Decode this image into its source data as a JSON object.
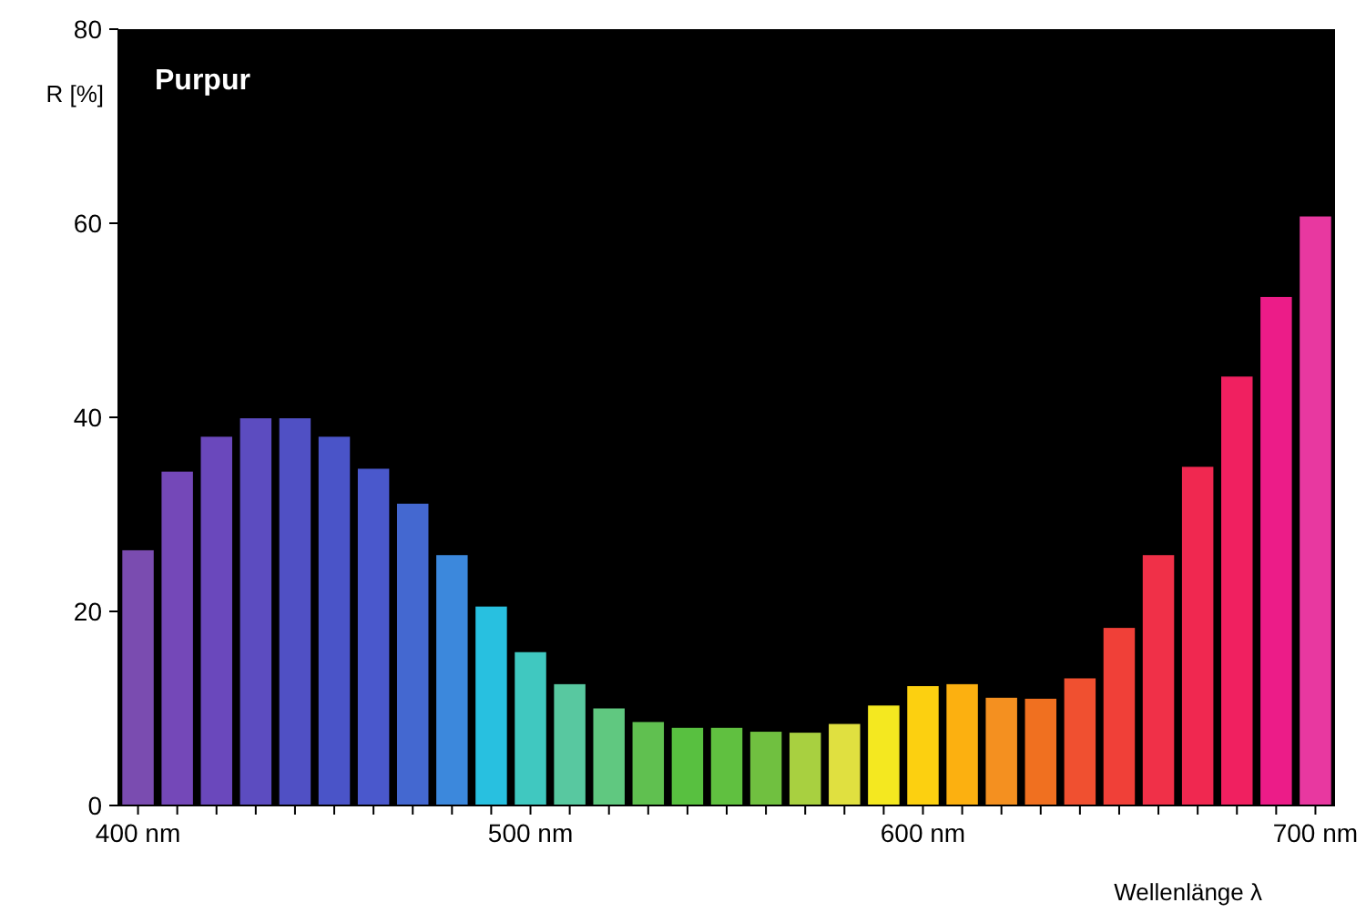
{
  "chart_data": {
    "type": "bar",
    "title": "Purpur",
    "ylabel": "R [%]",
    "xlabel": "Wellenlänge λ",
    "categories": [
      "400 nm",
      null,
      null,
      null,
      null,
      null,
      null,
      null,
      null,
      null,
      "500 nm",
      null,
      null,
      null,
      null,
      null,
      null,
      null,
      null,
      null,
      "600 nm",
      null,
      null,
      null,
      null,
      null,
      null,
      null,
      null,
      null,
      "700 nm"
    ],
    "values": [
      26.3,
      34.4,
      38.0,
      39.9,
      39.9,
      38.0,
      34.7,
      31.1,
      25.8,
      20.5,
      15.8,
      12.5,
      10.0,
      8.6,
      8.0,
      8.0,
      7.6,
      7.5,
      8.4,
      10.3,
      12.3,
      12.5,
      11.1,
      11.0,
      13.1,
      18.3,
      25.8,
      34.9,
      44.2,
      52.4,
      60.7
    ],
    "colors": [
      "#7a4cb0",
      "#7448b8",
      "#6a48bc",
      "#5c4cc0",
      "#5050c4",
      "#4a54c8",
      "#4a58cc",
      "#4468d0",
      "#3c88dc",
      "#28c0e0",
      "#40c8c0",
      "#58c8a0",
      "#60c880",
      "#60c050",
      "#58c040",
      "#60c040",
      "#70c040",
      "#a8d040",
      "#e0e040",
      "#f4e820",
      "#fcd010",
      "#fcb010",
      "#f49020",
      "#f07020",
      "#f05030",
      "#f04038",
      "#f03048",
      "#f02850",
      "#f02060",
      "#ec1c88",
      "#e838a0"
    ],
    "ylim": [
      0,
      80
    ],
    "yticks": [
      0,
      20,
      40,
      60,
      80
    ],
    "grid": false
  }
}
